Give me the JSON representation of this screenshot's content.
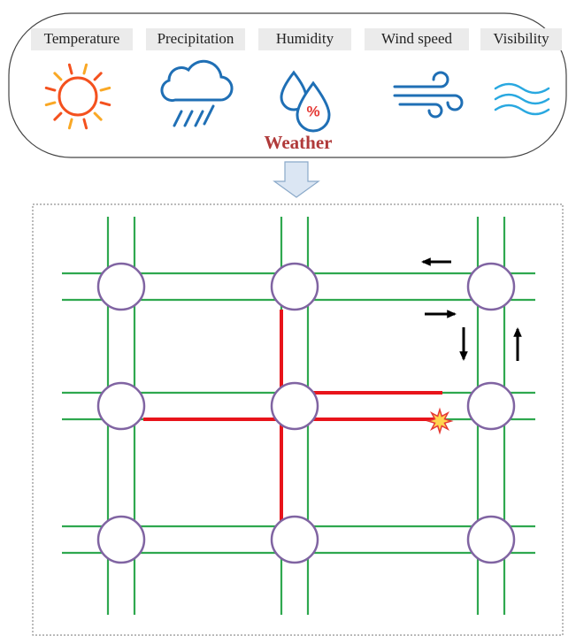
{
  "weather_factors": [
    "Temperature",
    "Precipitation",
    "Humidity",
    "Wind speed",
    "Visibility"
  ],
  "humidity_symbol": "%",
  "title": "Weather"
}
